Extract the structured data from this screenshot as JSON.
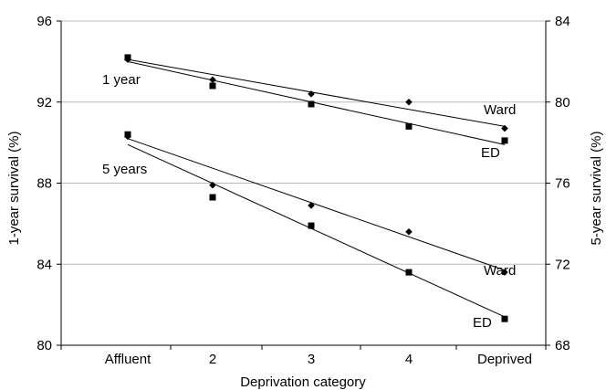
{
  "chart_data": {
    "type": "scatter",
    "categories": [
      "Affluent",
      "2",
      "3",
      "4",
      "Deprived"
    ],
    "xlabel": "Deprivation category",
    "ylabel_left": "1-year survival (%)",
    "ylabel_right": "5-year survival (%)",
    "ylim_left": [
      80,
      96
    ],
    "ylim_right": [
      68,
      84
    ],
    "yticks_left": [
      80,
      84,
      88,
      92,
      96
    ],
    "yticks_right": [
      68,
      72,
      76,
      80,
      84
    ],
    "grid": "horizontal",
    "series": [
      {
        "axis": "left",
        "group": "1 year",
        "name": "Ward",
        "marker": "diamond",
        "values": [
          94.1,
          93.1,
          92.4,
          92.0,
          90.7
        ],
        "trend": [
          94.1,
          90.8
        ]
      },
      {
        "axis": "left",
        "group": "1 year",
        "name": "ED",
        "marker": "square",
        "values": [
          94.2,
          92.8,
          91.9,
          90.8,
          90.1
        ],
        "trend": [
          94.0,
          89.9
        ]
      },
      {
        "axis": "right",
        "group": "5 years",
        "name": "Ward",
        "marker": "diamond",
        "values": [
          78.3,
          75.9,
          74.9,
          73.6,
          71.6
        ],
        "trend": [
          78.2,
          71.7
        ]
      },
      {
        "axis": "right",
        "group": "5 years",
        "name": "ED",
        "marker": "square",
        "values": [
          78.4,
          75.3,
          73.9,
          71.6,
          69.3
        ],
        "trend": [
          77.9,
          69.4
        ]
      }
    ],
    "annotations": [
      "1 year",
      "5 years",
      "Ward",
      "ED",
      "Ward",
      "ED"
    ]
  }
}
